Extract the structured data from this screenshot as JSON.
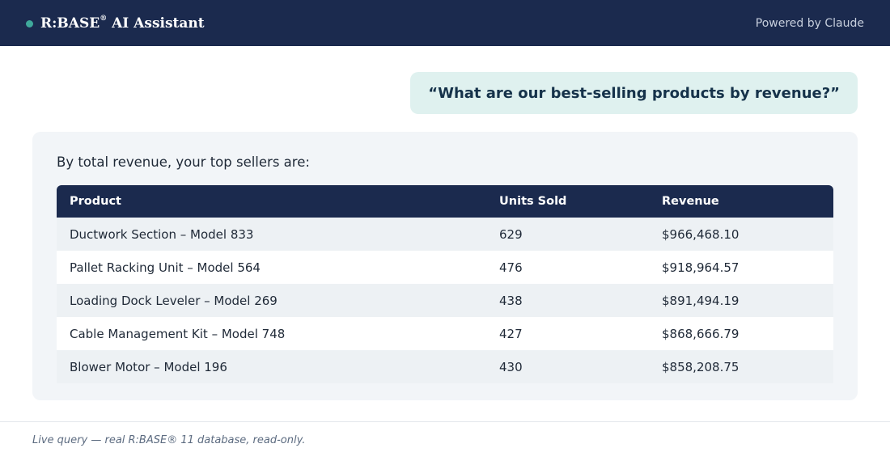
{
  "header": {
    "title": "R:BASE",
    "title_reg": "®",
    "title_suffix": " AI Assistant",
    "powered_by": "Powered by Claude",
    "accent_color": "#3fa99b",
    "bg_color": "#1b2a4e"
  },
  "question": {
    "text": "“What are our best-selling products by revenue?”"
  },
  "answer": {
    "intro": "By total revenue, your top sellers are:",
    "columns": [
      "Product",
      "Units Sold",
      "Revenue"
    ],
    "rows": [
      {
        "product": "Ductwork Section – Model 833",
        "units": "629",
        "revenue": "$966,468.10"
      },
      {
        "product": "Pallet Racking Unit – Model 564",
        "units": "476",
        "revenue": "$918,964.57"
      },
      {
        "product": "Loading Dock Leveler – Model 269",
        "units": "438",
        "revenue": "$891,494.19"
      },
      {
        "product": "Cable Management Kit – Model 748",
        "units": "427",
        "revenue": "$868,666.79"
      },
      {
        "product": "Blower Motor – Model 196",
        "units": "430",
        "revenue": "$858,208.75"
      }
    ]
  },
  "footer": {
    "note": "Live query — real R:BASE® 11 database, read-only."
  }
}
